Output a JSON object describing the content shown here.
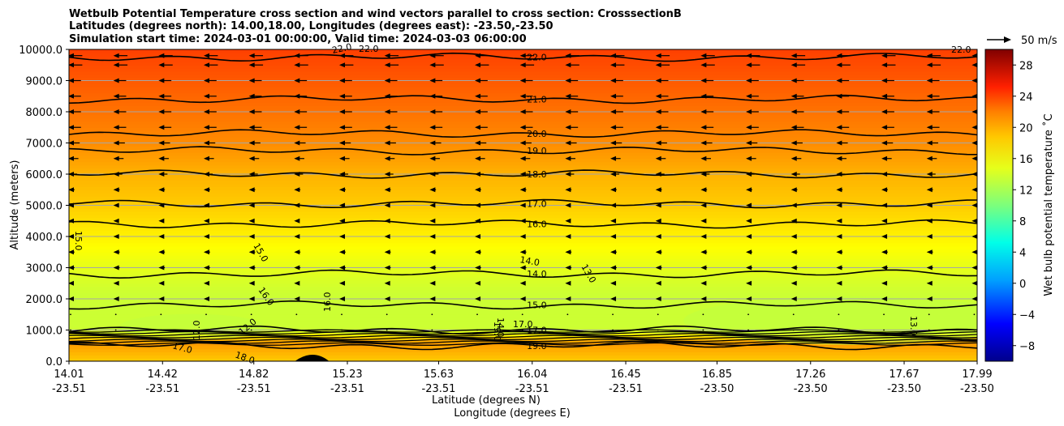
{
  "chart_data": {
    "type": "contour",
    "title_lines": [
      "Wetbulb Potential Temperature cross section and wind vectors parallel to cross section: CrosssectionB",
      "Latitudes (degrees north): 14.00,18.00, Longitudes (degrees east): -23.50,-23.50",
      "Simulation start time: 2024-03-01 00:00:00, Valid time: 2024-03-03 06:00:00"
    ],
    "ylabel": "Altitude (meters)",
    "xlabel": "Latitude (degrees N)",
    "xlabel2": "Longitude (degrees E)",
    "ylim": [
      0,
      10000
    ],
    "y_ticks": [
      "0.0",
      "1000.0",
      "2000.0",
      "3000.0",
      "4000.0",
      "5000.0",
      "6000.0",
      "7000.0",
      "8000.0",
      "9000.0",
      "10000.0"
    ],
    "y_tick_values": [
      0,
      1000,
      2000,
      3000,
      4000,
      5000,
      6000,
      7000,
      8000,
      9000,
      10000
    ],
    "x_ticks": [
      {
        "lat": "14.01",
        "lon": "-23.51"
      },
      {
        "lat": "14.42",
        "lon": "-23.51"
      },
      {
        "lat": "14.82",
        "lon": "-23.51"
      },
      {
        "lat": "15.23",
        "lon": "-23.51"
      },
      {
        "lat": "15.63",
        "lon": "-23.51"
      },
      {
        "lat": "16.04",
        "lon": "-23.51"
      },
      {
        "lat": "16.45",
        "lon": "-23.51"
      },
      {
        "lat": "16.85",
        "lon": "-23.50"
      },
      {
        "lat": "17.26",
        "lon": "-23.50"
      },
      {
        "lat": "17.67",
        "lon": "-23.50"
      },
      {
        "lat": "17.99",
        "lon": "-23.50"
      }
    ],
    "x_tick_values": [
      14.01,
      14.42,
      14.82,
      15.23,
      15.63,
      16.04,
      16.45,
      16.85,
      17.26,
      17.67,
      17.99
    ],
    "xlim": [
      14.01,
      17.99
    ],
    "colorbar": {
      "label": "Wet bulb potential temperature ˚C",
      "range": [
        -10,
        30
      ],
      "ticks": [
        "−8",
        "−4",
        "0",
        "4",
        "8",
        "12",
        "16",
        "20",
        "24",
        "28"
      ],
      "tick_values": [
        -8,
        -4,
        0,
        4,
        8,
        12,
        16,
        20,
        24,
        28
      ]
    },
    "quiver_key": "50 m/s",
    "contour_levels": [
      {
        "value": 22.0,
        "label": "22.0",
        "altitude": 9750
      },
      {
        "value": 21.0,
        "label": "21.0",
        "altitude": 8400
      },
      {
        "value": 20.0,
        "label": "20.0",
        "altitude": 7300
      },
      {
        "value": 19.0,
        "label": "19.0",
        "altitude": 6750
      },
      {
        "value": 18.0,
        "label": "18.0",
        "altitude": 6000
      },
      {
        "value": 17.0,
        "label": "17.0",
        "altitude": 5050
      },
      {
        "value": 16.0,
        "label": "16.0",
        "altitude": 4400
      },
      {
        "value": 14.0,
        "label": "14.0",
        "altitude": 2800
      },
      {
        "value": 15.0,
        "label": "15.0",
        "altitude": 1800
      },
      {
        "value": 17.0,
        "label": "17.0",
        "altitude": 1000
      },
      {
        "value": 19.0,
        "label": "19.0",
        "altitude": 500
      }
    ],
    "inline_contour_labels": [
      "22.0",
      "22.0",
      "22.0",
      "15.0",
      "15.0",
      "16.0",
      "16.0",
      "12.0",
      "12.0",
      "17.0",
      "18.0",
      "14.0",
      "13.0",
      "19.0",
      "14.0",
      "13.0",
      "17.0"
    ],
    "temperature_profile": [
      {
        "altitude": 0,
        "value": 17
      },
      {
        "altitude": 600,
        "value": 19
      },
      {
        "altitude": 1000,
        "value": 13
      },
      {
        "altitude": 2200,
        "value": 13
      },
      {
        "altitude": 3000,
        "value": 14
      },
      {
        "altitude": 4000,
        "value": 15.5
      },
      {
        "altitude": 5000,
        "value": 17
      },
      {
        "altitude": 6000,
        "value": 18
      },
      {
        "altitude": 7000,
        "value": 19.5
      },
      {
        "altitude": 8000,
        "value": 20.5
      },
      {
        "altitude": 9000,
        "value": 21.5
      },
      {
        "altitude": 10000,
        "value": 22.5
      }
    ],
    "wind_rows": [
      {
        "altitude": 9800,
        "speed": 9
      },
      {
        "altitude": 9500,
        "speed": 9
      },
      {
        "altitude": 9000,
        "speed": 8
      },
      {
        "altitude": 8500,
        "speed": 8
      },
      {
        "altitude": 8000,
        "speed": 8
      },
      {
        "altitude": 7500,
        "speed": 8
      },
      {
        "altitude": 7000,
        "speed": 7
      },
      {
        "altitude": 6500,
        "speed": 6
      },
      {
        "altitude": 6000,
        "speed": 5
      },
      {
        "altitude": 5500,
        "speed": 3
      },
      {
        "altitude": 5000,
        "speed": 2
      },
      {
        "altitude": 4500,
        "speed": 2
      },
      {
        "altitude": 4000,
        "speed": 2
      },
      {
        "altitude": 3500,
        "speed": 3
      },
      {
        "altitude": 3000,
        "speed": 3
      },
      {
        "altitude": 2500,
        "speed": 2
      },
      {
        "altitude": 2000,
        "speed": 2
      },
      {
        "altitude": 1500,
        "speed": 1
      },
      {
        "altitude": 1000,
        "speed": 1
      }
    ]
  }
}
